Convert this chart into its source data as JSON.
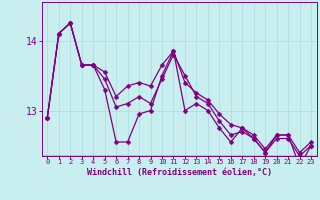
{
  "xlabel": "Windchill (Refroidissement éolien,°C)",
  "bg_color": "#c8eef0",
  "line_color": "#800080",
  "marker": "D",
  "markersize": 2.5,
  "linewidth": 0.9,
  "hours": [
    0,
    1,
    2,
    3,
    4,
    5,
    6,
    7,
    8,
    9,
    10,
    11,
    12,
    13,
    14,
    15,
    16,
    17,
    18,
    19,
    20,
    21,
    22,
    23
  ],
  "series1": [
    12.9,
    14.1,
    14.25,
    13.65,
    13.65,
    13.55,
    13.2,
    13.35,
    13.4,
    13.35,
    13.65,
    13.85,
    13.4,
    13.25,
    13.15,
    12.95,
    12.8,
    12.75,
    12.65,
    12.45,
    12.65,
    12.65,
    12.4,
    12.55
  ],
  "series2": [
    12.9,
    14.1,
    14.25,
    13.65,
    13.65,
    13.45,
    13.05,
    13.1,
    13.2,
    13.1,
    13.45,
    13.8,
    13.5,
    13.2,
    13.1,
    12.85,
    12.65,
    12.7,
    12.6,
    12.4,
    12.6,
    12.6,
    12.35,
    12.5
  ],
  "series3": [
    12.9,
    14.1,
    14.25,
    13.65,
    13.65,
    13.3,
    12.55,
    12.55,
    12.95,
    13.0,
    13.5,
    13.85,
    13.0,
    13.1,
    13.0,
    12.75,
    12.55,
    12.75,
    12.6,
    12.4,
    12.65,
    12.65,
    12.2,
    12.5
  ],
  "ylim_min": 12.35,
  "ylim_max": 14.55,
  "yticks": [
    13,
    14
  ],
  "grid_color": "#b0dce0",
  "tick_color": "#800080",
  "label_color": "#800080"
}
